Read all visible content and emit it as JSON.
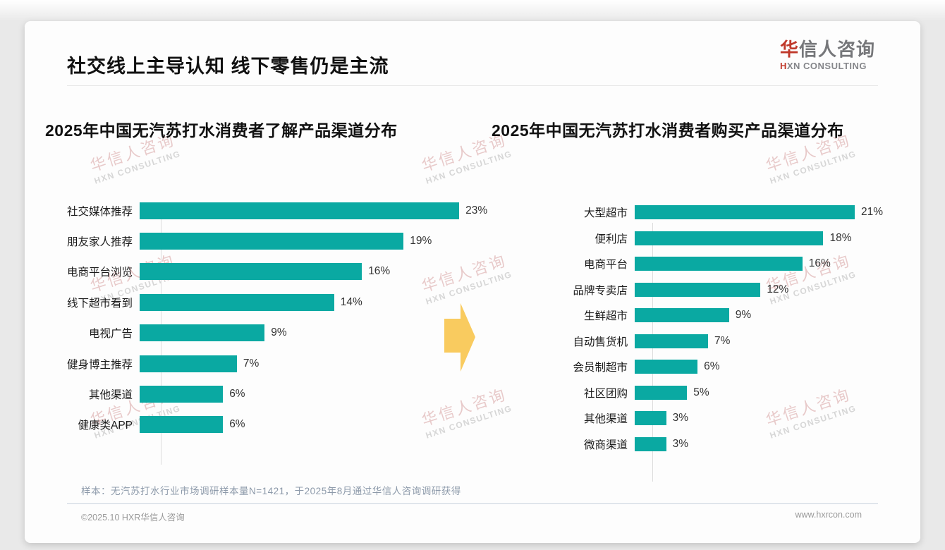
{
  "page": {
    "title": "社交线上主导认知 线下零售仍是主流",
    "logo": {
      "brand_red": "华",
      "brand_rest": "信人咨询",
      "sub_first": "H",
      "sub_rest": "XN CONSULTING"
    },
    "watermark": {
      "line1": "华信人咨询",
      "line2": "HXN CONSULTING"
    },
    "footer": {
      "note": "样本：无汽苏打水行业市场调研样本量N=1421，于2025年8月通过华信人咨询调研获得",
      "copyright": "©2025.10 HXR华信人咨询",
      "website": "www.hxrcon.com"
    },
    "colors": {
      "bar_teal": "#0aa9a2",
      "arrow_yellow": "#f9cb5f",
      "brand_red": "#c0392b"
    }
  },
  "chart_data": [
    {
      "type": "bar",
      "orientation": "horizontal",
      "title": "2025年中国无汽苏打水消费者了解产品渠道分布",
      "categories": [
        "社交媒体推荐",
        "朋友家人推荐",
        "电商平台浏览",
        "线下超市看到",
        "电视广告",
        "健身博主推荐",
        "其他渠道",
        "健康类APP"
      ],
      "values": [
        23,
        19,
        16,
        14,
        9,
        7,
        6,
        6
      ],
      "unit": "%",
      "xlim": [
        0,
        25
      ],
      "grid": false,
      "legend": "none",
      "data_labels": "outside-end"
    },
    {
      "type": "bar",
      "orientation": "horizontal",
      "title": "2025年中国无汽苏打水消费者购买产品渠道分布",
      "categories": [
        "大型超市",
        "便利店",
        "电商平台",
        "品牌专卖店",
        "生鲜超市",
        "自动售货机",
        "会员制超市",
        "社区团购",
        "其他渠道",
        "微商渠道"
      ],
      "values": [
        21,
        18,
        16,
        12,
        9,
        7,
        6,
        5,
        3,
        3
      ],
      "unit": "%",
      "xlim": [
        0,
        23
      ],
      "grid": false,
      "legend": "none",
      "data_labels": "outside-end"
    }
  ]
}
